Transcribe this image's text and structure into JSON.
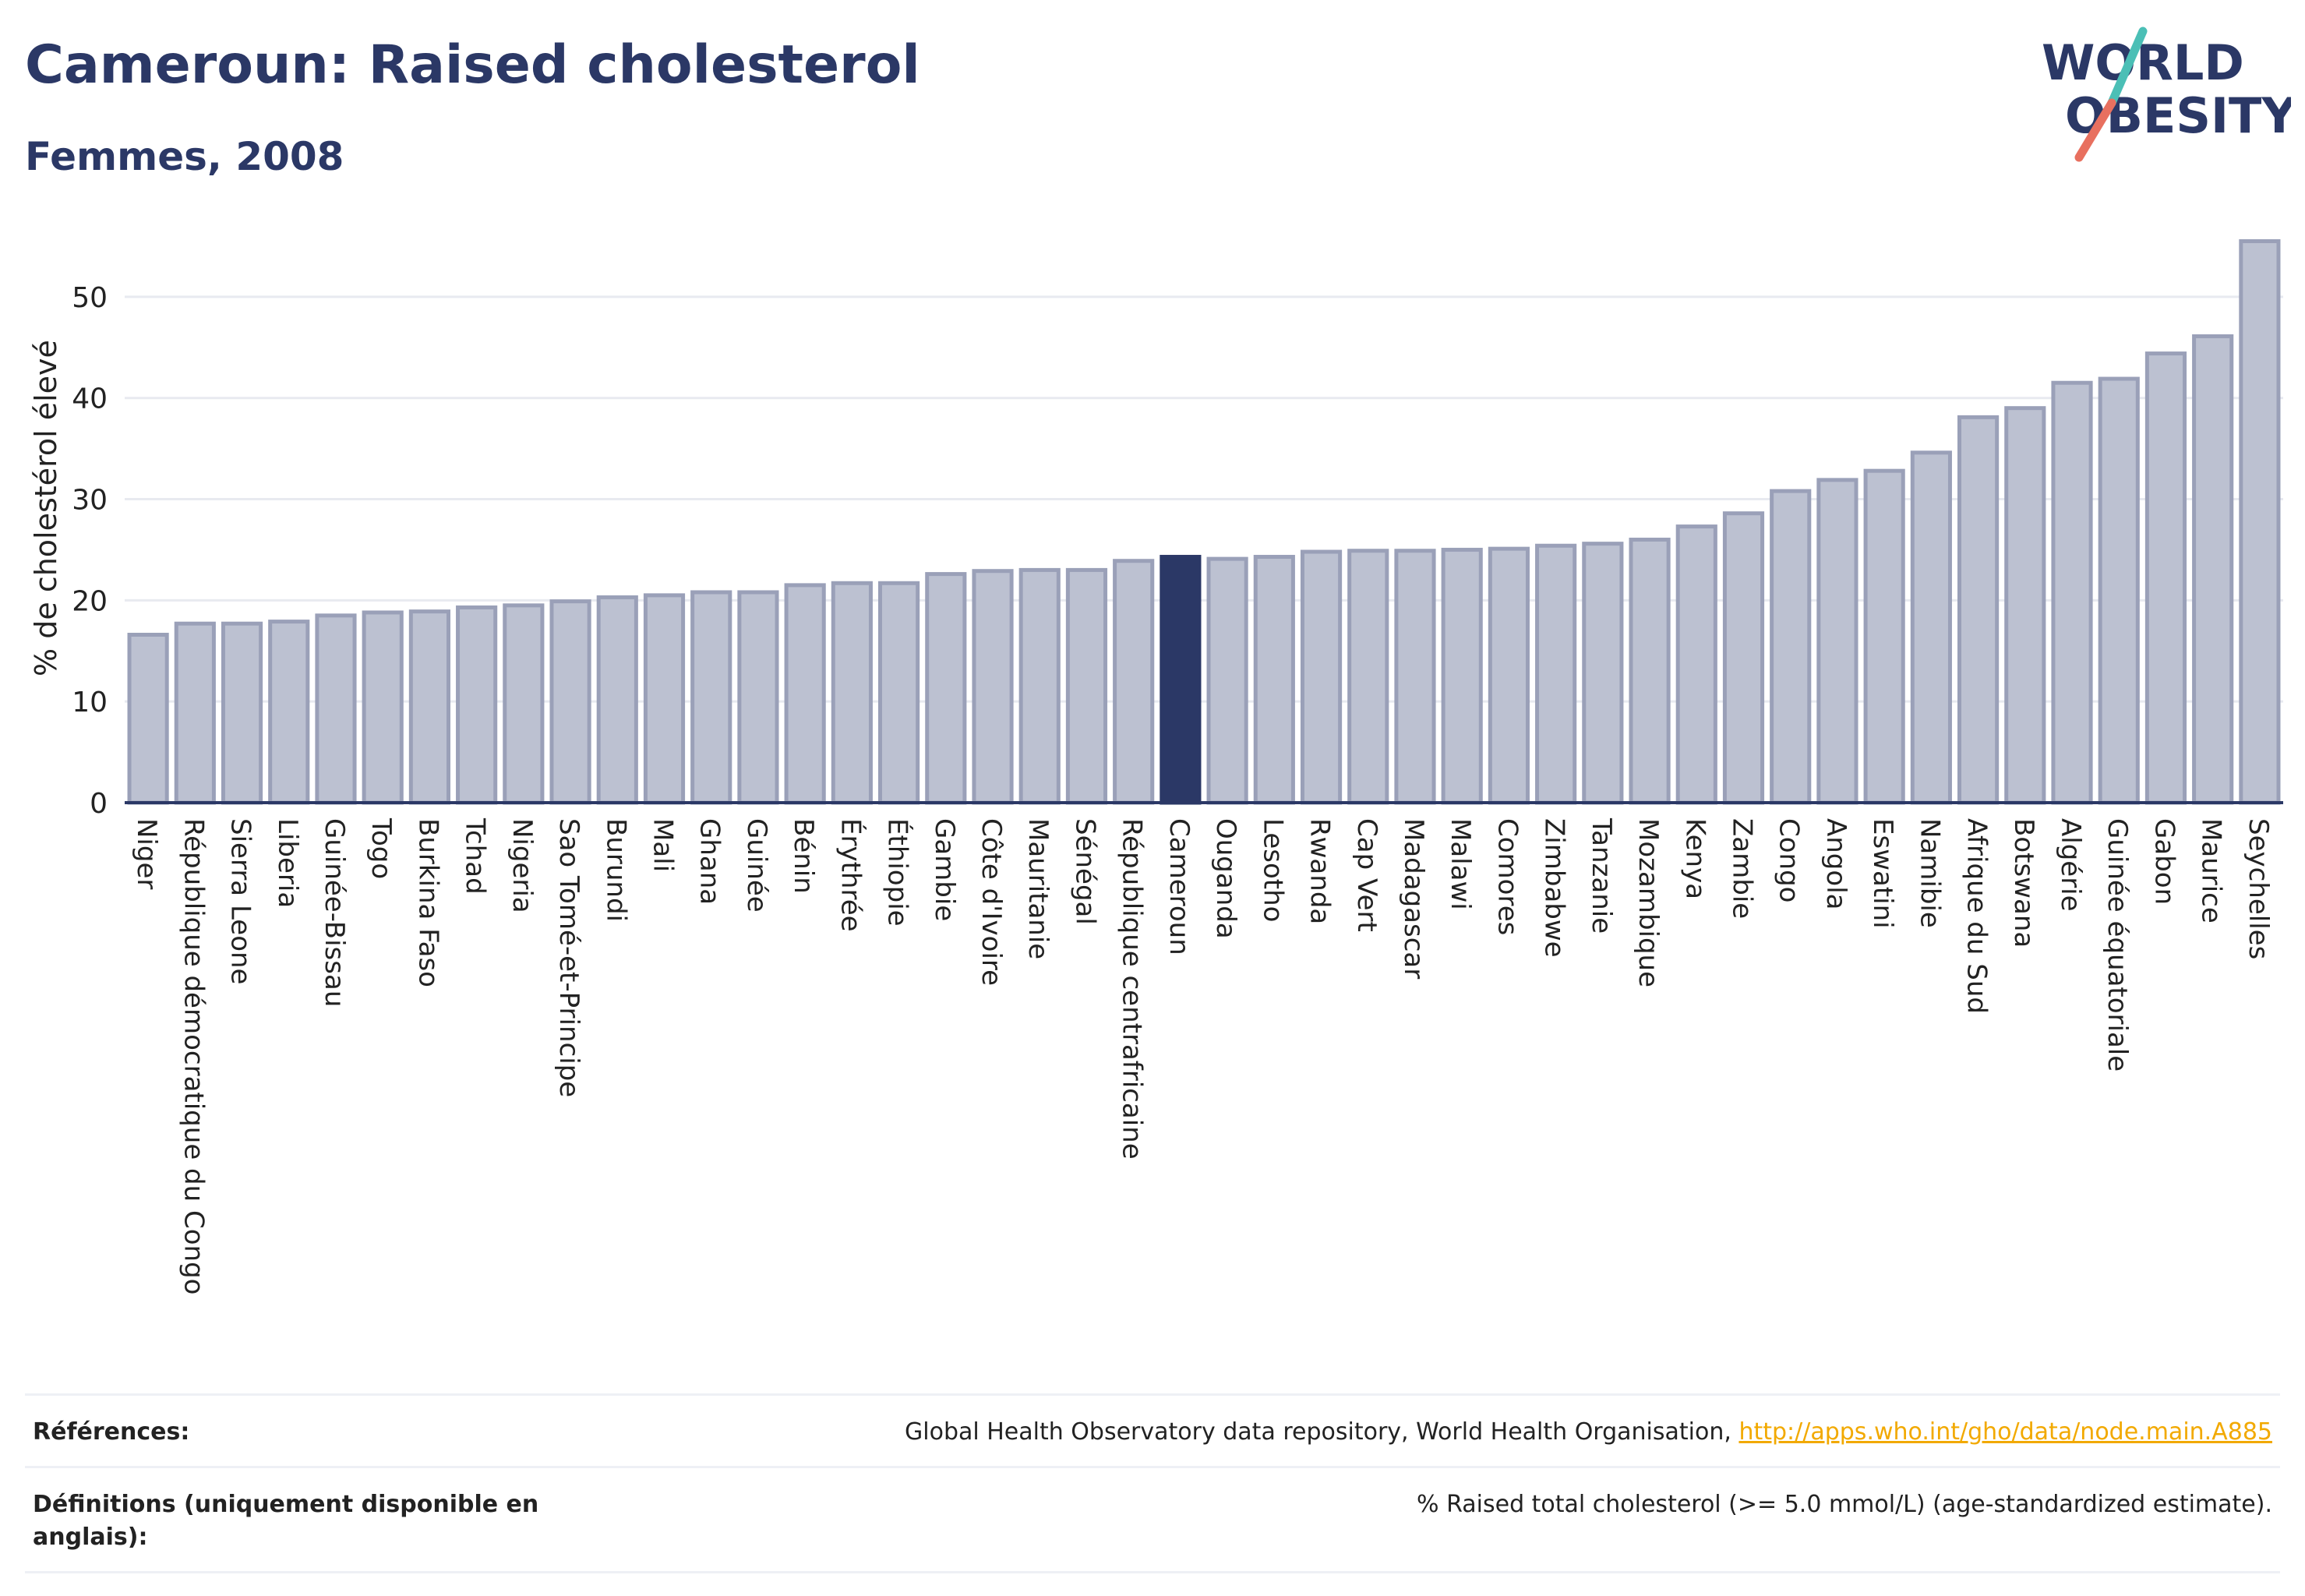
{
  "header": {
    "title": "Cameroun: Raised cholesterol",
    "subtitle": "Femmes, 2008"
  },
  "logo": {
    "line1": "WORLD",
    "line2": "OBESITY",
    "slash_colors": [
      "#4bbfb6",
      "#e8705f"
    ],
    "text_color": "#2b3866"
  },
  "colors": {
    "bar_default": "#bcc1d1",
    "bar_outline": "#9aa0b8",
    "bar_highlight": "#2b3866",
    "grid": "#e8eaf0",
    "axis": "#2b3866"
  },
  "chart_data": {
    "type": "bar",
    "title": "Cameroun: Raised cholesterol",
    "subtitle": "Femmes, 2008",
    "ylabel": "% de cholestérol élevé",
    "xlabel": "",
    "ylim": [
      0,
      57
    ],
    "yticks": [
      0,
      10,
      20,
      30,
      40,
      50
    ],
    "grid": true,
    "highlight": "Cameroun",
    "categories": [
      "Niger",
      "République démocratique du Congo",
      "Sierra Leone",
      "Liberia",
      "Guinée-Bissau",
      "Togo",
      "Burkina Faso",
      "Tchad",
      "Nigeria",
      "Sao Tomé-et-Principe",
      "Burundi",
      "Mali",
      "Ghana",
      "Guinée",
      "Bénin",
      "Érythrée",
      "Éthiopie",
      "Gambie",
      "Côte d'Ivoire",
      "Mauritanie",
      "Sénégal",
      "République centrafricaine",
      "Cameroun",
      "Ouganda",
      "Lesotho",
      "Rwanda",
      "Cap Vert",
      "Madagascar",
      "Malawi",
      "Comores",
      "Zimbabwe",
      "Tanzanie",
      "Mozambique",
      "Kenya",
      "Zambie",
      "Congo",
      "Angola",
      "Eswatini",
      "Namibie",
      "Afrique du Sud",
      "Botswana",
      "Algérie",
      "Guinée équatoriale",
      "Gabon",
      "Maurice",
      "Seychelles"
    ],
    "values": [
      16.6,
      17.7,
      17.7,
      17.9,
      18.5,
      18.8,
      18.9,
      19.3,
      19.5,
      19.9,
      20.3,
      20.5,
      20.8,
      20.8,
      21.5,
      21.7,
      21.7,
      22.6,
      22.9,
      23.0,
      23.0,
      23.9,
      24.3,
      24.1,
      24.3,
      24.8,
      24.9,
      24.9,
      25.0,
      25.1,
      25.4,
      25.6,
      26.0,
      27.3,
      28.6,
      30.8,
      31.9,
      32.8,
      34.6,
      38.1,
      39.0,
      41.5,
      41.9,
      44.4,
      46.1,
      55.5
    ]
  },
  "references": {
    "ref_label": "Références:",
    "ref_text": "Global Health Observatory data repository, World Health Organisation, ",
    "ref_link": "http://apps.who.int/gho/data/node.main.A885",
    "def_label": "Définitions (uniquement disponible en anglais):",
    "def_text": "% Raised total cholesterol (>= 5.0 mmol/L) (age-standardized estimate)."
  }
}
